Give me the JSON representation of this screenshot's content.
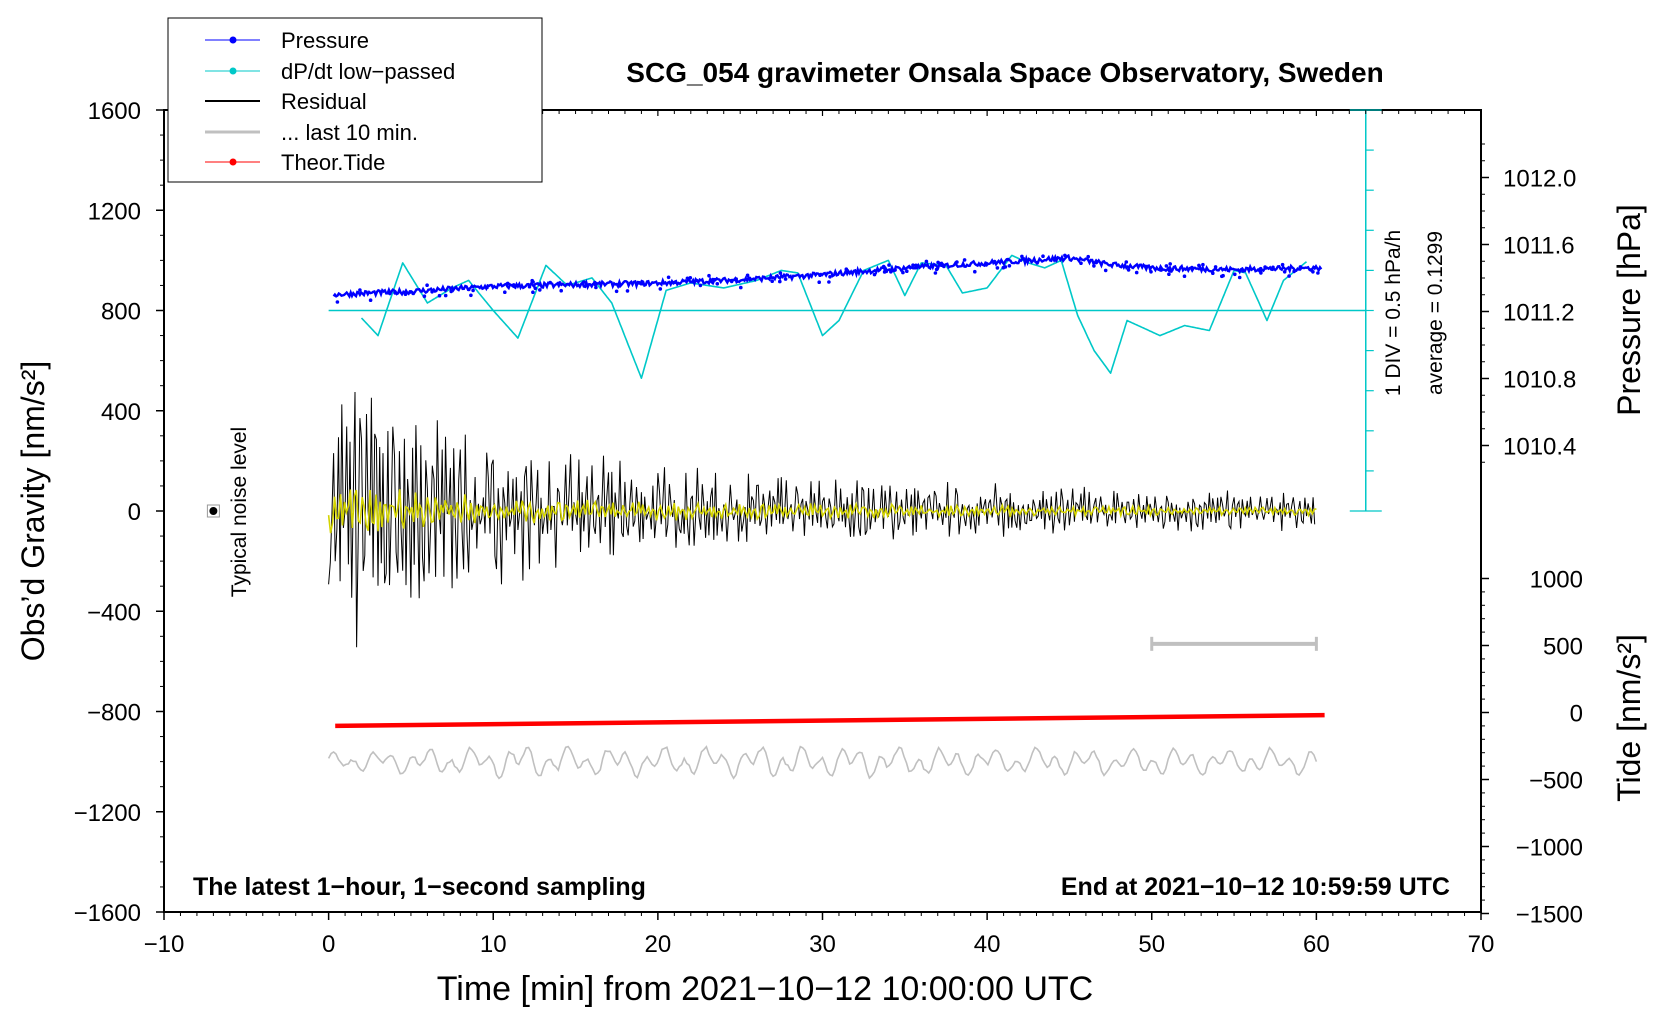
{
  "chart_data": {
    "type": "line",
    "title": "SCG_054 gravimeter Onsala Space Observatory, Sweden",
    "xlabel": "Time [min] from 2021−10−12 10:00:00 UTC",
    "ylabel_left": "Obs’d Gravity [nm/s²]",
    "ylabel_right_top": "Pressure [hPa]",
    "ylabel_right_bottom": "Tide [nm/s²]",
    "xlim": [
      -10,
      70
    ],
    "ylim_left": [
      -1600,
      1600
    ],
    "x_ticks": [
      "−10",
      "0",
      "10",
      "20",
      "30",
      "40",
      "50",
      "60",
      "70"
    ],
    "y_left_ticks": [
      "1600",
      "1200",
      "800",
      "400",
      "0",
      "−400",
      "−800",
      "−1200",
      "−1600"
    ],
    "pressure_ticks": [
      "1012.0",
      "1011.6",
      "1011.2",
      "1010.8",
      "1010.4"
    ],
    "tide_ticks": [
      "1000",
      "500",
      "0",
      "−500",
      "−1000",
      "−1500"
    ],
    "legend": [
      {
        "label": "Pressure",
        "color": "#0000ff",
        "marker": true
      },
      {
        "label": "dP/dt low−passed",
        "color": "#00c8c8",
        "marker": true
      },
      {
        "label": "Residual",
        "color": "#000000",
        "marker": false
      },
      {
        "label": "... last 10 min.",
        "color": "#c0c0c0",
        "marker": false
      },
      {
        "label": "Theor.Tide",
        "color": "#ff0000",
        "marker": true
      }
    ],
    "annotations": {
      "bottom_left": "The latest 1−hour, 1−second sampling",
      "bottom_right": "End at 2021−10−12 10:59:59 UTC",
      "noise": "Typical noise level",
      "scale_div": "1 DIV = 0.5 hPa/h",
      "scale_avg": "average = 0.1299"
    },
    "series": [
      {
        "name": "Pressure",
        "axis": "pressure_hPa",
        "x": [
          0,
          5,
          10,
          15,
          20,
          25,
          30,
          35,
          40,
          45,
          47.5,
          50,
          55,
          60
        ],
        "values": [
          1011.3,
          1011.32,
          1011.35,
          1011.36,
          1011.37,
          1011.39,
          1011.42,
          1011.46,
          1011.49,
          1011.52,
          1011.48,
          1011.46,
          1011.45,
          1011.46
        ]
      },
      {
        "name": "dP/dt low-passed",
        "axis": "gravity_equiv",
        "x": [
          2,
          3,
          4.5,
          6,
          7.5,
          8.5,
          10,
          11.5,
          13.2,
          14.5,
          16,
          17.2,
          19,
          20.5,
          22,
          24,
          26,
          27.5,
          28.5,
          30,
          31,
          32.5,
          34,
          35,
          36,
          37.5,
          38.5,
          40,
          41.5,
          42.5,
          43.5,
          44.5,
          45.5,
          46.5,
          47.5,
          48.5,
          49.5,
          50.5,
          52,
          53.5,
          55,
          55.7,
          57,
          58,
          59.5
        ],
        "values": [
          770,
          700,
          990,
          830,
          890,
          920,
          800,
          690,
          980,
          900,
          930,
          830,
          530,
          880,
          910,
          890,
          920,
          960,
          950,
          700,
          760,
          960,
          1000,
          860,
          990,
          980,
          870,
          890,
          1020,
          990,
          970,
          1000,
          780,
          640,
          550,
          760,
          730,
          700,
          740,
          720,
          960,
          950,
          760,
          920,
          1000
        ]
      },
      {
        "name": "Residual",
        "axis": "gravity",
        "x": [
          0,
          10,
          20,
          30,
          40,
          50,
          60
        ],
        "values": [
          0,
          0,
          0,
          0,
          0,
          0,
          0
        ],
        "amplitude_envelope": [
          650,
          260,
          160,
          120,
          100,
          80,
          70
        ]
      },
      {
        "name": "Residual filtered",
        "axis": "gravity",
        "x": [
          0,
          10,
          20,
          30,
          40,
          50,
          60
        ],
        "values": [
          0,
          0,
          0,
          0,
          0,
          0,
          0
        ],
        "amplitude_envelope": [
          100,
          50,
          35,
          28,
          22,
          18,
          15
        ]
      },
      {
        "name": "... last 10 min.",
        "axis": "gravity",
        "x": [
          0,
          10,
          20,
          30,
          40,
          50,
          60
        ],
        "values": [
          -1000,
          -1000,
          -1000,
          -1000,
          -1000,
          -1000,
          -1000
        ],
        "amplitude_envelope": [
          30,
          60,
          55,
          60,
          50,
          50,
          50
        ]
      },
      {
        "name": "Theor.Tide",
        "axis": "tide_nm_s2",
        "x": [
          0,
          60
        ],
        "values": [
          -100,
          -20
        ]
      }
    ],
    "horizontal_reference_line": {
      "value": 800,
      "axis": "gravity"
    },
    "noise_level": {
      "x": -7,
      "y": 0,
      "err": 20
    },
    "last10_bar": {
      "x0": 50,
      "x1": 60,
      "y": -530
    }
  }
}
